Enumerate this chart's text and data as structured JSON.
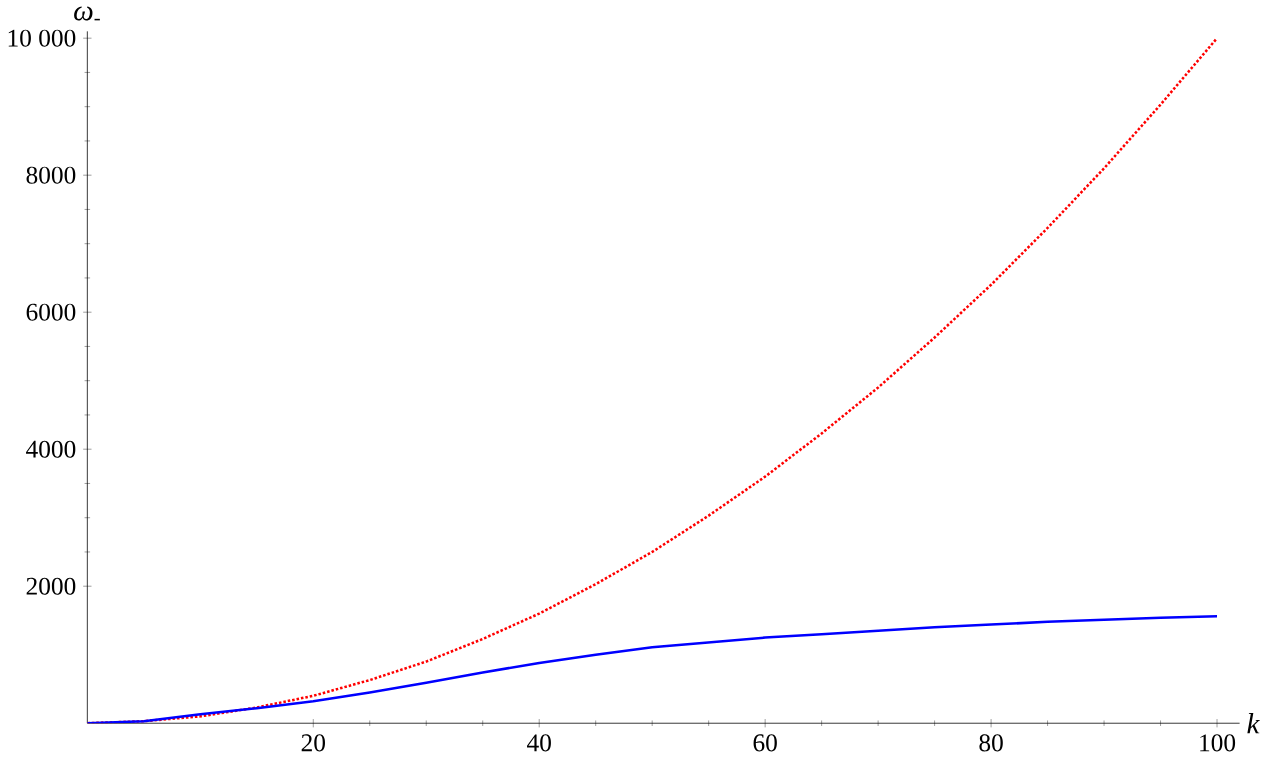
{
  "chart_data": {
    "type": "line",
    "xlabel": "k",
    "ylabel": "ω$_{-}$",
    "x": [
      0,
      5,
      10,
      15,
      20,
      25,
      30,
      35,
      40,
      45,
      50,
      55,
      60,
      65,
      70,
      75,
      80,
      85,
      90,
      95,
      100
    ],
    "series": [
      {
        "color": "#ff0000",
        "line_style": "dotted",
        "values": [
          0,
          30,
          100,
          230,
          400,
          630,
          900,
          1230,
          1600,
          2030,
          2500,
          3030,
          3600,
          4230,
          4900,
          5630,
          6400,
          7230,
          8100,
          9030,
          10000
        ]
      },
      {
        "color": "#0000ff",
        "line_style": "solid",
        "values": [
          0,
          30,
          130,
          220,
          320,
          450,
          590,
          740,
          880,
          1000,
          1110,
          1180,
          1250,
          1300,
          1350,
          1400,
          1440,
          1480,
          1510,
          1540,
          1560
        ]
      }
    ],
    "xlim": [
      0,
      102
    ],
    "ylim": [
      0,
      10100
    ],
    "xticks": [
      20,
      40,
      60,
      80,
      100
    ],
    "yticks": [
      2000,
      4000,
      6000,
      8000,
      {
        "value": 10000,
        "label": "10 000"
      }
    ],
    "marker": "none",
    "grid": false
  }
}
